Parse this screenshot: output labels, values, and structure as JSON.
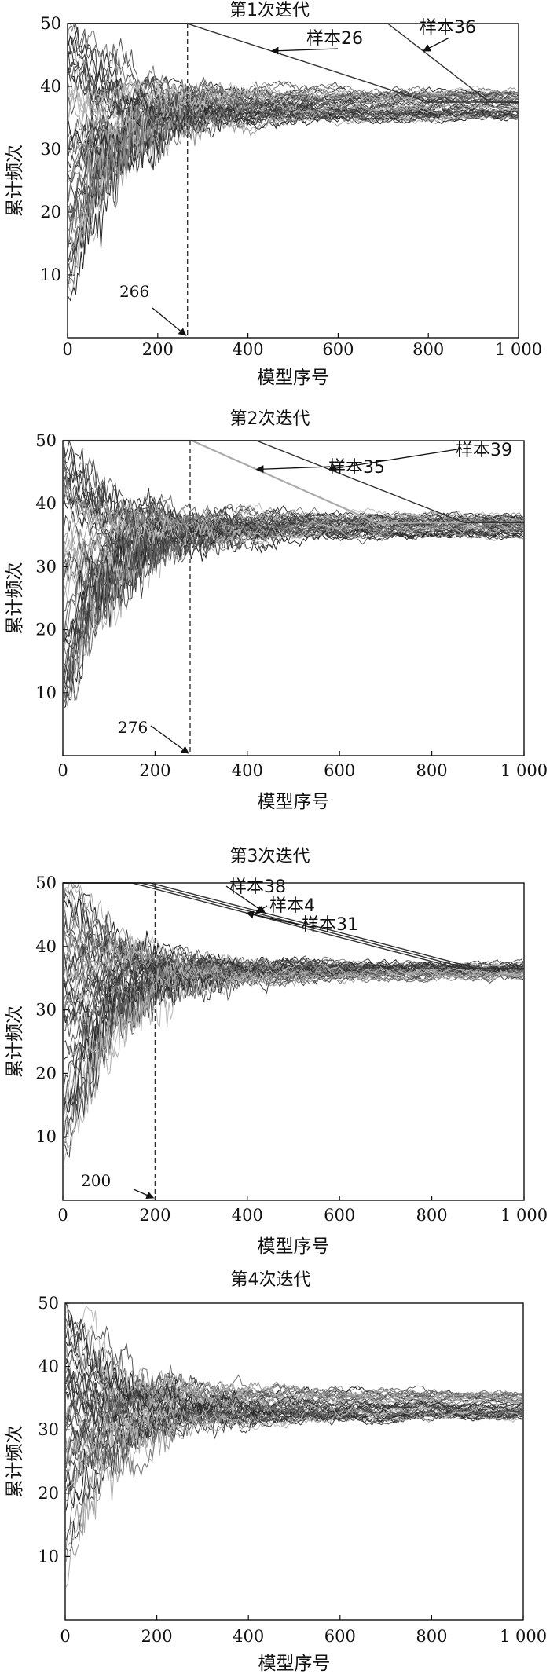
{
  "chart_data": [
    {
      "type": "line",
      "title": "第1次迭代",
      "xlabel": "模型序号",
      "ylabel": "累计频次",
      "xlim": [
        0,
        1000
      ],
      "ylim": [
        0,
        50
      ],
      "xticks": [
        0,
        200,
        400,
        600,
        800,
        1000
      ],
      "xtick_labels": [
        "0",
        "200",
        "400",
        "600",
        "800",
        "1 000"
      ],
      "yticks": [
        10,
        20,
        30,
        40,
        50
      ],
      "ytick_labels": [
        "10",
        "20",
        "30",
        "40",
        "50"
      ],
      "n_series": 50,
      "grid": false,
      "legend": "none",
      "converge_range": [
        35,
        39
      ],
      "vline": {
        "x": 266,
        "label": "266"
      },
      "highlighted": [
        {
          "label": "样本26",
          "x_leave_50": 265,
          "x_converge": 800
        },
        {
          "label": "样本36",
          "x_leave_50": 710,
          "x_converge": 935
        }
      ],
      "seed": 11
    },
    {
      "type": "line",
      "title": "第2次迭代",
      "xlabel": "模型序号",
      "ylabel": "累计频次",
      "xlim": [
        0,
        1000
      ],
      "ylim": [
        0,
        50
      ],
      "xticks": [
        0,
        200,
        400,
        600,
        800,
        1000
      ],
      "xtick_labels": [
        "0",
        "200",
        "400",
        "600",
        "800",
        "1 000"
      ],
      "yticks": [
        10,
        20,
        30,
        40,
        50
      ],
      "ytick_labels": [
        "10",
        "20",
        "30",
        "40",
        "50"
      ],
      "n_series": 50,
      "grid": false,
      "legend": "none",
      "converge_range": [
        35,
        38
      ],
      "vline": {
        "x": 276,
        "label": "276"
      },
      "highlighted": [
        {
          "label": "样本35",
          "x_leave_50": 280,
          "x_converge": 680
        },
        {
          "label": "样本39",
          "x_leave_50": 420,
          "x_converge": 870
        }
      ],
      "seed": 23
    },
    {
      "type": "line",
      "title": "第3次迭代",
      "xlabel": "模型序号",
      "ylabel": "累计频次",
      "xlim": [
        0,
        1000
      ],
      "ylim": [
        0,
        50
      ],
      "xticks": [
        0,
        200,
        400,
        600,
        800,
        1000
      ],
      "xtick_labels": [
        "0",
        "200",
        "400",
        "600",
        "800",
        "1 000"
      ],
      "yticks": [
        10,
        20,
        30,
        40,
        50
      ],
      "ytick_labels": [
        "10",
        "20",
        "30",
        "40",
        "50"
      ],
      "n_series": 50,
      "grid": false,
      "legend": "none",
      "converge_range": [
        35,
        37
      ],
      "vline": {
        "x": 200,
        "label": "200"
      },
      "highlighted": [
        {
          "label": "样本38",
          "x_leave_50": 190,
          "x_converge": 900
        },
        {
          "label": "样本4",
          "x_leave_50": 170,
          "x_converge": 880
        },
        {
          "label": "样本31",
          "x_leave_50": 150,
          "x_converge": 860
        }
      ],
      "seed": 37
    },
    {
      "type": "line",
      "title": "第4次迭代",
      "xlabel": "模型序号",
      "ylabel": "累计频次",
      "xlim": [
        0,
        1000
      ],
      "ylim": [
        0,
        50
      ],
      "xticks": [
        0,
        200,
        400,
        600,
        800,
        1000
      ],
      "xtick_labels": [
        "0",
        "200",
        "400",
        "600",
        "800",
        "1 000"
      ],
      "yticks": [
        10,
        20,
        30,
        40,
        50
      ],
      "ytick_labels": [
        "10",
        "20",
        "30",
        "40",
        "50"
      ],
      "n_series": 50,
      "grid": false,
      "legend": "none",
      "converge_range": [
        32,
        36
      ],
      "vline": null,
      "highlighted": [],
      "seed": 53
    }
  ]
}
